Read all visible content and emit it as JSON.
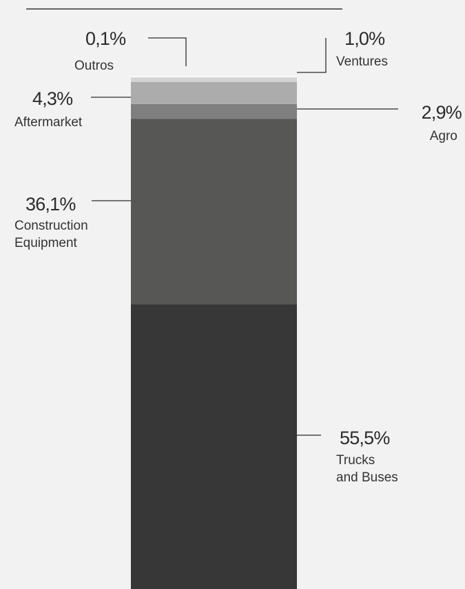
{
  "chart_data": {
    "type": "bar",
    "stacked": true,
    "unit": "%",
    "segments": [
      {
        "id": "trucks",
        "value": 55.5,
        "value_label": "55,5%",
        "label_lines": [
          "Trucks",
          "and Buses"
        ],
        "color": "#373737"
      },
      {
        "id": "construction",
        "value": 36.1,
        "value_label": "36,1%",
        "label_lines": [
          "Construction",
          "Equipment"
        ],
        "color": "#575755"
      },
      {
        "id": "agro",
        "value": 2.9,
        "value_label": "2,9%",
        "label_lines": [
          "Agro"
        ],
        "color": "#7f7f7f"
      },
      {
        "id": "aftermarket",
        "value": 4.3,
        "value_label": "4,3%",
        "label_lines": [
          "Aftermarket"
        ],
        "color": "#acacac"
      },
      {
        "id": "ventures",
        "value": 1.0,
        "value_label": "1,0%",
        "label_lines": [
          "Ventures"
        ],
        "color": "#d3d3d3"
      },
      {
        "id": "outros",
        "value": 0.1,
        "value_label": "0,1%",
        "label_lines": [
          "Outros"
        ],
        "color": "#ffffff"
      }
    ]
  },
  "colors": {
    "background": "#f2f2f2",
    "text": "#2b2b2b",
    "leader_line": "#2b2b2b"
  }
}
